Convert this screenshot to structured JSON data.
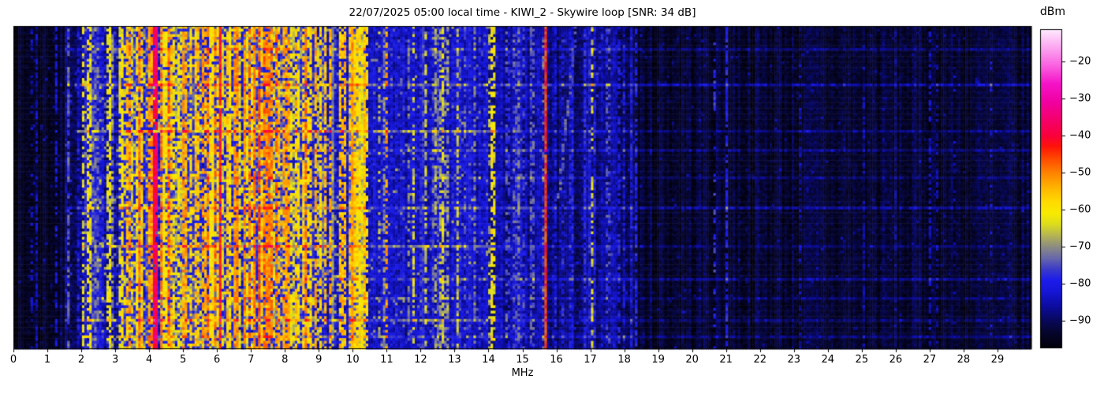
{
  "title": "22/07/2025 05:00 local time - KIWI_2 - Skywire loop [SNR: 34 dB]",
  "station": "KIWI_2",
  "antenna": "Skywire loop",
  "snr_db": 34,
  "timestamp_label": "22/07/2025 05:00 local time",
  "xaxis": {
    "label": "MHz",
    "min": 0,
    "max": 30,
    "ticks": [
      0,
      1,
      2,
      3,
      4,
      5,
      6,
      7,
      8,
      9,
      10,
      11,
      12,
      13,
      14,
      15,
      16,
      17,
      18,
      19,
      20,
      21,
      22,
      23,
      24,
      25,
      26,
      27,
      28,
      29
    ]
  },
  "colorbar": {
    "label": "dBm",
    "vmax": -11.3,
    "vmin": -97.4,
    "ticks": [
      -20,
      -30,
      -40,
      -50,
      -60,
      -70,
      -80,
      -90
    ]
  },
  "chart_data": {
    "type": "heatmap",
    "title": "22/07/2025 05:00 local time - KIWI_2 - Skywire loop [SNR: 34 dB]",
    "xlabel": "MHz",
    "x_range": [
      0,
      30
    ],
    "value_unit": "dBm",
    "value_range": [
      -97.4,
      -11.3
    ],
    "grid": {
      "cols": 416,
      "rows": 118,
      "seed": 7
    },
    "colormap": [
      [
        -97.4,
        "#020008"
      ],
      [
        -93,
        "#06062f"
      ],
      [
        -90,
        "#08085a"
      ],
      [
        -86,
        "#0c0ca0"
      ],
      [
        -82,
        "#1616d7"
      ],
      [
        -79,
        "#1c1ceb"
      ],
      [
        -76,
        "#3c3cc8"
      ],
      [
        -73,
        "#6969aa"
      ],
      [
        -70,
        "#8c8c82"
      ],
      [
        -67,
        "#b4b455"
      ],
      [
        -64,
        "#dcdc1e"
      ],
      [
        -61,
        "#f8eb00"
      ],
      [
        -58,
        "#ffdc00"
      ],
      [
        -54,
        "#ffb400"
      ],
      [
        -50,
        "#ff8200"
      ],
      [
        -46,
        "#ff4600"
      ],
      [
        -43,
        "#ff140a"
      ],
      [
        -40,
        "#fa003c"
      ],
      [
        -36,
        "#f50069"
      ],
      [
        -31,
        "#f000a0"
      ],
      [
        -26,
        "#f514c8"
      ],
      [
        -21,
        "#fa64e1"
      ],
      [
        -16,
        "#fcaaf2"
      ],
      [
        -11.3,
        "#ffebff"
      ]
    ],
    "bands": [
      {
        "f0": 0.0,
        "f1": 0.35,
        "base": -95,
        "spread": 2.5,
        "sparkle_p": 0.01,
        "sparkle_a": 6,
        "stripes": 0,
        "slmin": -90,
        "slmax": -88,
        "dash": 0.5
      },
      {
        "f0": 0.35,
        "f1": 1.55,
        "base": -93.5,
        "spread": 3,
        "sparkle_p": 0.03,
        "sparkle_a": 9,
        "stripes": 4,
        "slmin": -86,
        "slmax": -80,
        "dash": 0.5
      },
      {
        "f0": 1.55,
        "f1": 2.0,
        "base": -89,
        "spread": 5,
        "sparkle_p": 0.06,
        "sparkle_a": 12,
        "stripes": 3,
        "slmin": -82,
        "slmax": -74,
        "dash": 0.4
      },
      {
        "f0": 2.0,
        "f1": 3.15,
        "base": -84,
        "spread": 7,
        "sparkle_p": 0.14,
        "sparkle_a": 16,
        "stripes": 10,
        "slmin": -76,
        "slmax": -60,
        "dash": 0.45
      },
      {
        "f0": 3.15,
        "f1": 8.65,
        "base": -79,
        "spread": 7,
        "sparkle_p": 0.3,
        "sparkle_a": 20,
        "stripes": 85,
        "slmin": -74,
        "slmax": -48,
        "dash": 0.3
      },
      {
        "f0": 8.65,
        "f1": 9.9,
        "base": -82,
        "spread": 7,
        "sparkle_p": 0.16,
        "sparkle_a": 16,
        "stripes": 16,
        "slmin": -72,
        "slmax": -52,
        "dash": 0.35
      },
      {
        "f0": 9.9,
        "f1": 10.4,
        "base": -72,
        "spread": 7,
        "sparkle_p": 0.25,
        "sparkle_a": 10,
        "stripes": 6,
        "slmin": -64,
        "slmax": -54,
        "dash": 0.3
      },
      {
        "f0": 10.4,
        "f1": 14.0,
        "base": -83.5,
        "spread": 6,
        "sparkle_p": 0.07,
        "sparkle_a": 12,
        "stripes": 22,
        "slmin": -80,
        "slmax": -64,
        "dash": 0.5
      },
      {
        "f0": 14.0,
        "f1": 15.65,
        "base": -86.5,
        "spread": 4.5,
        "sparkle_p": 0.05,
        "sparkle_a": 9,
        "stripes": 10,
        "slmin": -82,
        "slmax": -72,
        "dash": 0.45
      },
      {
        "f0": 15.65,
        "f1": 18.3,
        "base": -88,
        "spread": 4.5,
        "sparkle_p": 0.04,
        "sparkle_a": 8,
        "stripes": 12,
        "slmin": -84,
        "slmax": -76,
        "dash": 0.5
      },
      {
        "f0": 18.3,
        "f1": 30.0,
        "base": -93,
        "spread": 3,
        "sparkle_p": 0.02,
        "sparkle_a": 7,
        "stripes": 5,
        "slmin": -87,
        "slmax": -83,
        "dash": 0.6
      }
    ],
    "signals": [
      {
        "f": 2.05,
        "w": 0.05,
        "level": -63,
        "dash": 0.45
      },
      {
        "f": 2.16,
        "w": 0.04,
        "level": -60,
        "dash": 0.5
      },
      {
        "f": 2.5,
        "w": 0.04,
        "level": -74,
        "dash": 0.4
      },
      {
        "f": 2.8,
        "w": 0.04,
        "level": -70,
        "dash": 0.45
      },
      {
        "f": 3.2,
        "w": 0.05,
        "level": -60,
        "dash": 0.3
      },
      {
        "f": 3.33,
        "w": 0.06,
        "level": -55,
        "dash": 0.25
      },
      {
        "f": 3.6,
        "w": 0.05,
        "level": -62,
        "dash": 0.3
      },
      {
        "f": 3.8,
        "w": 0.05,
        "level": -57,
        "dash": 0.3
      },
      {
        "f": 4.02,
        "w": 0.05,
        "level": -52,
        "dash": 0.25
      },
      {
        "f": 4.19,
        "w": 0.1,
        "level": -38,
        "dash": 0.08
      },
      {
        "f": 4.32,
        "w": 0.05,
        "level": -50,
        "dash": 0.2
      },
      {
        "f": 4.65,
        "w": 0.05,
        "level": -55,
        "dash": 0.25
      },
      {
        "f": 4.85,
        "w": 0.05,
        "level": -60,
        "dash": 0.3
      },
      {
        "f": 5.0,
        "w": 0.06,
        "level": -52,
        "dash": 0.2
      },
      {
        "f": 5.2,
        "w": 0.04,
        "level": -58,
        "dash": 0.3
      },
      {
        "f": 5.35,
        "w": 0.05,
        "level": -55,
        "dash": 0.3
      },
      {
        "f": 5.55,
        "w": 0.04,
        "level": -60,
        "dash": 0.3
      },
      {
        "f": 5.85,
        "w": 0.2,
        "level": -60,
        "dash": 0.12
      },
      {
        "f": 6.07,
        "w": 0.08,
        "level": -42,
        "dash": 0.08
      },
      {
        "f": 6.3,
        "w": 0.05,
        "level": -56,
        "dash": 0.25
      },
      {
        "f": 6.55,
        "w": 0.05,
        "level": -53,
        "dash": 0.25
      },
      {
        "f": 6.8,
        "w": 0.06,
        "level": -51,
        "dash": 0.2
      },
      {
        "f": 7.0,
        "w": 0.04,
        "level": -58,
        "dash": 0.3
      },
      {
        "f": 7.25,
        "w": 0.08,
        "level": -46,
        "dash": 0.15
      },
      {
        "f": 7.45,
        "w": 0.06,
        "level": -50,
        "dash": 0.2
      },
      {
        "f": 7.62,
        "w": 0.04,
        "level": -57,
        "dash": 0.3
      },
      {
        "f": 7.8,
        "w": 0.05,
        "level": -55,
        "dash": 0.25
      },
      {
        "f": 8.1,
        "w": 0.05,
        "level": -53,
        "dash": 0.25
      },
      {
        "f": 8.35,
        "w": 0.04,
        "level": -60,
        "dash": 0.3
      },
      {
        "f": 8.55,
        "w": 0.04,
        "level": -57,
        "dash": 0.3
      },
      {
        "f": 9.05,
        "w": 0.05,
        "level": -58,
        "dash": 0.3
      },
      {
        "f": 9.35,
        "w": 0.05,
        "level": -54,
        "dash": 0.3
      },
      {
        "f": 9.6,
        "w": 0.05,
        "level": -56,
        "dash": 0.3
      },
      {
        "f": 9.78,
        "w": 0.04,
        "level": -60,
        "dash": 0.35
      },
      {
        "f": 9.98,
        "w": 0.06,
        "level": -52,
        "dash": 0.12
      },
      {
        "f": 10.18,
        "w": 0.3,
        "level": -63,
        "dash": 0.18
      },
      {
        "f": 11.0,
        "w": 0.04,
        "level": -52,
        "dash": 0.6
      },
      {
        "f": 11.6,
        "w": 0.03,
        "level": -72,
        "dash": 0.5
      },
      {
        "f": 12.1,
        "w": 0.04,
        "level": -66,
        "dash": 0.45
      },
      {
        "f": 12.5,
        "w": 0.03,
        "level": -74,
        "dash": 0.5
      },
      {
        "f": 12.78,
        "w": 0.04,
        "level": -69,
        "dash": 0.45
      },
      {
        "f": 13.05,
        "w": 0.04,
        "level": -67,
        "dash": 0.45
      },
      {
        "f": 13.55,
        "w": 0.03,
        "level": -72,
        "dash": 0.5
      },
      {
        "f": 14.06,
        "w": 0.06,
        "level": -60,
        "dash": 0.3
      },
      {
        "f": 14.18,
        "w": 0.05,
        "level": -64,
        "dash": 0.4
      },
      {
        "f": 14.55,
        "w": 0.03,
        "level": -78,
        "dash": 0.45
      },
      {
        "f": 15.0,
        "w": 0.03,
        "level": -77,
        "dash": 0.5
      },
      {
        "f": 15.69,
        "w": 0.08,
        "level": -45,
        "dash": 0.03
      },
      {
        "f": 16.35,
        "w": 0.03,
        "level": -80,
        "dash": 0.5
      },
      {
        "f": 17.05,
        "w": 0.04,
        "level": -65,
        "dash": 0.55
      },
      {
        "f": 17.5,
        "w": 0.03,
        "level": -76,
        "dash": 0.5
      },
      {
        "f": 17.85,
        "w": 0.03,
        "level": -79,
        "dash": 0.5
      },
      {
        "f": 18.35,
        "w": 0.03,
        "level": -80,
        "dash": 0.4
      },
      {
        "f": 20.65,
        "w": 0.035,
        "level": -78,
        "dash": 0.6
      },
      {
        "f": 21.0,
        "w": 0.03,
        "level": -80,
        "dash": 0.3
      },
      {
        "f": 23.2,
        "w": 0.03,
        "level": -86,
        "dash": 0.6
      },
      {
        "f": 26.0,
        "w": 0.03,
        "level": -87,
        "dash": 0.6
      }
    ],
    "streaks": [
      {
        "y": 0.07,
        "boost": 5,
        "f0": 1.6,
        "f1": 30
      },
      {
        "y": 0.175,
        "boost": 8,
        "f0": 1.6,
        "f1": 30
      },
      {
        "y": 0.32,
        "boost": 11,
        "f0": 1.8,
        "f1": 14.3
      },
      {
        "y": 0.32,
        "boost": 5,
        "f0": 14.3,
        "f1": 30
      },
      {
        "y": 0.38,
        "boost": 5,
        "f0": 8,
        "f1": 30
      },
      {
        "y": 0.465,
        "boost": 4,
        "f0": 1.8,
        "f1": 30
      },
      {
        "y": 0.56,
        "boost": 7,
        "f0": 1.6,
        "f1": 30
      },
      {
        "y": 0.675,
        "boost": 10,
        "f0": 2,
        "f1": 14.2
      },
      {
        "y": 0.675,
        "boost": 4,
        "f0": 14.2,
        "f1": 30
      },
      {
        "y": 0.78,
        "boost": 6,
        "f0": 8,
        "f1": 30
      },
      {
        "y": 0.838,
        "boost": 4,
        "f0": 2,
        "f1": 30
      },
      {
        "y": 0.91,
        "boost": 10,
        "f0": 1.8,
        "f1": 14.3
      },
      {
        "y": 0.91,
        "boost": 4,
        "f0": 14.3,
        "f1": 30
      },
      {
        "y": 0.955,
        "boost": 5,
        "f0": 2,
        "f1": 30
      }
    ],
    "drifters": [
      {
        "f_top": 16.55,
        "y_top": 0.0,
        "f_bot": 16.0,
        "y_bot": 0.55,
        "level": -74,
        "dash": 0.5
      },
      {
        "f_top": 17.3,
        "y_top": 0.0,
        "f_bot": 17.05,
        "y_bot": 0.32,
        "level": -78,
        "dash": 0.6
      }
    ]
  }
}
